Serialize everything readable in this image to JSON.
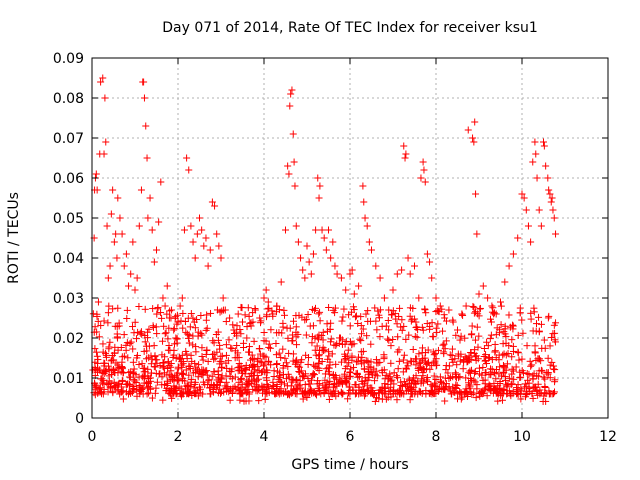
{
  "chart_data": {
    "type": "scatter",
    "title": "Day 071 of 2014, Rate Of TEC Index for receiver ksu1",
    "xlabel": "GPS time / hours",
    "ylabel": "ROTI / TECUs",
    "xlim": [
      0,
      12
    ],
    "ylim": [
      0,
      0.09
    ],
    "xticks": [
      0,
      2,
      4,
      6,
      8,
      10,
      12
    ],
    "xtick_labels": [
      "0",
      "2",
      "4",
      "6",
      "8",
      "10",
      "12"
    ],
    "yticks": [
      0,
      0.01,
      0.02,
      0.03,
      0.04,
      0.05,
      0.06,
      0.07,
      0.08,
      0.09
    ],
    "ytick_labels": [
      "0",
      "0.01",
      "0.02",
      "0.03",
      "0.04",
      "0.05",
      "0.06",
      "0.07",
      "0.08",
      "0.09"
    ],
    "grid": true,
    "marker": "+",
    "color": "#ff0000",
    "series": [
      {
        "name": "ROTI",
        "points": [
          [
            0.02,
            0.012
          ],
          [
            0.05,
            0.045
          ],
          [
            0.06,
            0.057
          ],
          [
            0.08,
            0.06
          ],
          [
            0.1,
            0.061
          ],
          [
            0.12,
            0.057
          ],
          [
            0.15,
            0.029
          ],
          [
            0.18,
            0.066
          ],
          [
            0.2,
            0.084
          ],
          [
            0.25,
            0.085
          ],
          [
            0.28,
            0.066
          ],
          [
            0.3,
            0.08
          ],
          [
            0.32,
            0.069
          ],
          [
            0.35,
            0.048
          ],
          [
            0.38,
            0.035
          ],
          [
            0.42,
            0.038
          ],
          [
            0.45,
            0.051
          ],
          [
            0.48,
            0.057
          ],
          [
            0.52,
            0.044
          ],
          [
            0.55,
            0.046
          ],
          [
            0.58,
            0.04
          ],
          [
            0.6,
            0.055
          ],
          [
            0.65,
            0.05
          ],
          [
            0.7,
            0.046
          ],
          [
            0.75,
            0.038
          ],
          [
            0.8,
            0.041
          ],
          [
            0.85,
            0.033
          ],
          [
            0.9,
            0.036
          ],
          [
            0.95,
            0.044
          ],
          [
            1.0,
            0.032
          ],
          [
            1.05,
            0.035
          ],
          [
            1.1,
            0.048
          ],
          [
            1.15,
            0.057
          ],
          [
            1.18,
            0.084
          ],
          [
            1.2,
            0.084
          ],
          [
            1.22,
            0.08
          ],
          [
            1.25,
            0.073
          ],
          [
            1.28,
            0.065
          ],
          [
            1.3,
            0.05
          ],
          [
            1.35,
            0.055
          ],
          [
            1.4,
            0.047
          ],
          [
            1.45,
            0.039
          ],
          [
            1.5,
            0.042
          ],
          [
            1.55,
            0.049
          ],
          [
            1.6,
            0.059
          ],
          [
            1.65,
            0.03
          ],
          [
            1.7,
            0.028
          ],
          [
            1.75,
            0.033
          ],
          [
            1.8,
            0.025
          ],
          [
            1.85,
            0.027
          ],
          [
            1.9,
            0.022
          ],
          [
            1.95,
            0.02
          ],
          [
            2.0,
            0.024
          ],
          [
            2.05,
            0.028
          ],
          [
            2.1,
            0.03
          ],
          [
            2.15,
            0.047
          ],
          [
            2.2,
            0.065
          ],
          [
            2.25,
            0.062
          ],
          [
            2.3,
            0.048
          ],
          [
            2.35,
            0.044
          ],
          [
            2.4,
            0.04
          ],
          [
            2.45,
            0.046
          ],
          [
            2.5,
            0.05
          ],
          [
            2.55,
            0.047
          ],
          [
            2.6,
            0.043
          ],
          [
            2.65,
            0.045
          ],
          [
            2.7,
            0.038
          ],
          [
            2.75,
            0.042
          ],
          [
            2.8,
            0.054
          ],
          [
            2.85,
            0.053
          ],
          [
            2.9,
            0.046
          ],
          [
            2.95,
            0.043
          ],
          [
            3.0,
            0.04
          ],
          [
            3.05,
            0.03
          ],
          [
            3.1,
            0.027
          ],
          [
            3.2,
            0.025
          ],
          [
            3.3,
            0.022
          ],
          [
            3.4,
            0.026
          ],
          [
            3.5,
            0.024
          ],
          [
            3.6,
            0.02
          ],
          [
            3.7,
            0.023
          ],
          [
            3.8,
            0.027
          ],
          [
            3.9,
            0.025
          ],
          [
            4.0,
            0.03
          ],
          [
            4.05,
            0.032
          ],
          [
            4.1,
            0.029
          ],
          [
            4.2,
            0.026
          ],
          [
            4.3,
            0.028
          ],
          [
            4.4,
            0.034
          ],
          [
            4.5,
            0.047
          ],
          [
            4.55,
            0.063
          ],
          [
            4.58,
            0.061
          ],
          [
            4.6,
            0.078
          ],
          [
            4.62,
            0.081
          ],
          [
            4.65,
            0.082
          ],
          [
            4.68,
            0.071
          ],
          [
            4.7,
            0.064
          ],
          [
            4.72,
            0.058
          ],
          [
            4.75,
            0.048
          ],
          [
            4.8,
            0.044
          ],
          [
            4.85,
            0.04
          ],
          [
            4.9,
            0.037
          ],
          [
            4.95,
            0.035
          ],
          [
            5.0,
            0.043
          ],
          [
            5.05,
            0.039
          ],
          [
            5.1,
            0.036
          ],
          [
            5.15,
            0.041
          ],
          [
            5.2,
            0.047
          ],
          [
            5.25,
            0.06
          ],
          [
            5.28,
            0.055
          ],
          [
            5.3,
            0.058
          ],
          [
            5.35,
            0.047
          ],
          [
            5.4,
            0.045
          ],
          [
            5.45,
            0.042
          ],
          [
            5.5,
            0.047
          ],
          [
            5.55,
            0.04
          ],
          [
            5.6,
            0.044
          ],
          [
            5.65,
            0.038
          ],
          [
            5.7,
            0.036
          ],
          [
            5.8,
            0.035
          ],
          [
            5.9,
            0.032
          ],
          [
            6.0,
            0.036
          ],
          [
            6.05,
            0.037
          ],
          [
            6.1,
            0.031
          ],
          [
            6.2,
            0.033
          ],
          [
            6.3,
            0.058
          ],
          [
            6.32,
            0.054
          ],
          [
            6.35,
            0.05
          ],
          [
            6.4,
            0.048
          ],
          [
            6.45,
            0.044
          ],
          [
            6.5,
            0.042
          ],
          [
            6.6,
            0.038
          ],
          [
            6.7,
            0.035
          ],
          [
            6.8,
            0.03
          ],
          [
            6.9,
            0.027
          ],
          [
            7.0,
            0.032
          ],
          [
            7.1,
            0.036
          ],
          [
            7.2,
            0.037
          ],
          [
            7.25,
            0.068
          ],
          [
            7.28,
            0.065
          ],
          [
            7.3,
            0.066
          ],
          [
            7.35,
            0.04
          ],
          [
            7.4,
            0.036
          ],
          [
            7.5,
            0.038
          ],
          [
            7.6,
            0.03
          ],
          [
            7.65,
            0.06
          ],
          [
            7.7,
            0.064
          ],
          [
            7.72,
            0.062
          ],
          [
            7.75,
            0.059
          ],
          [
            7.8,
            0.041
          ],
          [
            7.85,
            0.039
          ],
          [
            7.9,
            0.035
          ],
          [
            8.0,
            0.03
          ],
          [
            8.1,
            0.028
          ],
          [
            8.2,
            0.025
          ],
          [
            8.3,
            0.027
          ],
          [
            8.4,
            0.024
          ],
          [
            8.5,
            0.022
          ],
          [
            8.6,
            0.026
          ],
          [
            8.7,
            0.028
          ],
          [
            8.75,
            0.072
          ],
          [
            8.85,
            0.07
          ],
          [
            8.88,
            0.069
          ],
          [
            8.9,
            0.074
          ],
          [
            8.92,
            0.056
          ],
          [
            8.95,
            0.046
          ],
          [
            9.0,
            0.031
          ],
          [
            9.1,
            0.033
          ],
          [
            9.2,
            0.03
          ],
          [
            9.3,
            0.028
          ],
          [
            9.4,
            0.026
          ],
          [
            9.5,
            0.029
          ],
          [
            9.6,
            0.034
          ],
          [
            9.7,
            0.038
          ],
          [
            9.8,
            0.041
          ],
          [
            9.9,
            0.045
          ],
          [
            10.0,
            0.056
          ],
          [
            10.05,
            0.055
          ],
          [
            10.1,
            0.052
          ],
          [
            10.15,
            0.048
          ],
          [
            10.2,
            0.044
          ],
          [
            10.25,
            0.064
          ],
          [
            10.3,
            0.069
          ],
          [
            10.32,
            0.066
          ],
          [
            10.35,
            0.06
          ],
          [
            10.4,
            0.052
          ],
          [
            10.45,
            0.048
          ],
          [
            10.5,
            0.069
          ],
          [
            10.52,
            0.068
          ],
          [
            10.55,
            0.063
          ],
          [
            10.6,
            0.06
          ],
          [
            10.62,
            0.057
          ],
          [
            10.65,
            0.056
          ],
          [
            10.68,
            0.054
          ],
          [
            10.7,
            0.055
          ],
          [
            10.72,
            0.052
          ],
          [
            10.75,
            0.05
          ],
          [
            10.78,
            0.046
          ]
        ]
      }
    ]
  }
}
